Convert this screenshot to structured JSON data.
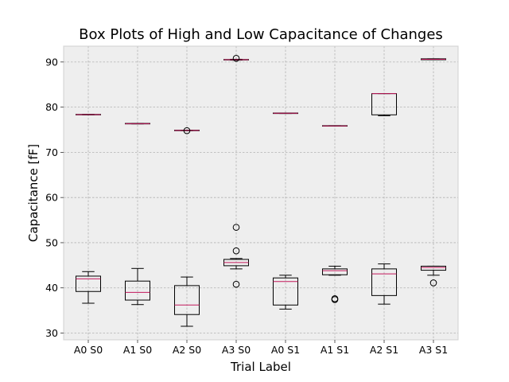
{
  "chart_data": {
    "type": "boxplot",
    "title": "Box Plots of High and Low Capacitance of Changes",
    "xlabel": "Trial Label",
    "ylabel": "Capacitance [fF]",
    "ylim": [
      28.5,
      93.5
    ],
    "yticks": [
      30,
      40,
      50,
      60,
      70,
      80,
      90
    ],
    "grid": true,
    "categories": [
      "A0 S0",
      "A1 S0",
      "A2 S0",
      "A3 S0",
      "A0 S1",
      "A1 S1",
      "A2 S1",
      "A3 S1"
    ],
    "colors": {
      "background": "#eeeeee",
      "grid": "#b2b2b2",
      "median": "#c2185b",
      "box": "#000000"
    },
    "high_group": [
      {
        "category": "A0 S0",
        "whislo": 78.3,
        "q1": 78.3,
        "med": 78.35,
        "q3": 78.4,
        "whishi": 78.4,
        "fliers": []
      },
      {
        "category": "A1 S0",
        "whislo": 76.3,
        "q1": 76.3,
        "med": 76.35,
        "q3": 76.4,
        "whishi": 76.4,
        "fliers": []
      },
      {
        "category": "A2 S0",
        "whislo": 74.8,
        "q1": 74.8,
        "med": 74.85,
        "q3": 74.9,
        "whishi": 74.9,
        "fliers": [
          74.8
        ]
      },
      {
        "category": "A3 S0",
        "whislo": 90.4,
        "q1": 90.45,
        "med": 90.5,
        "q3": 90.55,
        "whishi": 90.6,
        "fliers": [
          90.8
        ]
      },
      {
        "category": "A0 S1",
        "whislo": 78.6,
        "q1": 78.6,
        "med": 78.65,
        "q3": 78.7,
        "whishi": 78.7,
        "fliers": []
      },
      {
        "category": "A1 S1",
        "whislo": 75.8,
        "q1": 75.8,
        "med": 75.85,
        "q3": 75.9,
        "whishi": 75.9,
        "fliers": []
      },
      {
        "category": "A2 S1",
        "whislo": 78.1,
        "q1": 78.3,
        "med": 83.0,
        "q3": 83.0,
        "whishi": 83.0,
        "fliers": []
      },
      {
        "category": "A3 S1",
        "whislo": 90.5,
        "q1": 90.5,
        "med": 90.6,
        "q3": 90.7,
        "whishi": 90.7,
        "fliers": []
      }
    ],
    "low_group": [
      {
        "category": "A0 S0",
        "whislo": 36.6,
        "q1": 39.2,
        "med": 42.0,
        "q3": 42.6,
        "whishi": 43.6,
        "fliers": []
      },
      {
        "category": "A1 S0",
        "whislo": 36.3,
        "q1": 37.3,
        "med": 39.0,
        "q3": 41.5,
        "whishi": 44.3,
        "fliers": []
      },
      {
        "category": "A2 S0",
        "whislo": 31.5,
        "q1": 34.1,
        "med": 36.2,
        "q3": 40.5,
        "whishi": 42.4,
        "fliers": []
      },
      {
        "category": "A3 S0",
        "whislo": 44.2,
        "q1": 44.9,
        "med": 45.6,
        "q3": 46.3,
        "whishi": 46.5,
        "fliers": [
          53.4,
          48.2,
          40.8
        ]
      },
      {
        "category": "A0 S1",
        "whislo": 35.3,
        "q1": 36.2,
        "med": 41.4,
        "q3": 42.2,
        "whishi": 42.8,
        "fliers": []
      },
      {
        "category": "A1 S1",
        "whislo": 42.8,
        "q1": 42.9,
        "med": 43.8,
        "q3": 44.2,
        "whishi": 44.8,
        "fliers": [
          37.6,
          37.4
        ]
      },
      {
        "category": "A2 S1",
        "whislo": 36.4,
        "q1": 38.3,
        "med": 43.1,
        "q3": 44.2,
        "whishi": 45.3,
        "fliers": []
      },
      {
        "category": "A3 S1",
        "whislo": 42.8,
        "q1": 43.9,
        "med": 44.5,
        "q3": 44.8,
        "whishi": 44.8,
        "fliers": [
          41.1
        ]
      }
    ]
  }
}
